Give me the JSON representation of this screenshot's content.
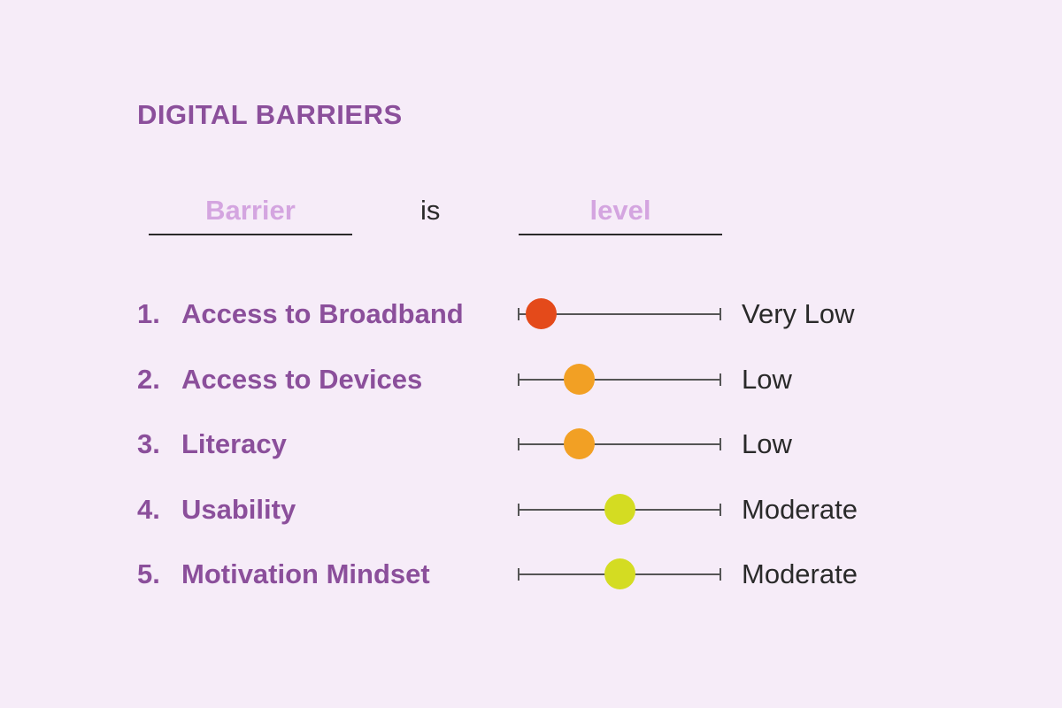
{
  "title": "DIGITAL BARRIERS",
  "sentence": {
    "blank1": "Barrier",
    "connector": "is",
    "blank2": "level"
  },
  "barriers": [
    {
      "number": "1.",
      "label": "Access to Broadband",
      "level_text": "Very Low",
      "level_fraction": 0.11,
      "color": "#e44a1a"
    },
    {
      "number": "2.",
      "label": "Access to Devices",
      "level_text": "Low",
      "level_fraction": 0.3,
      "color": "#f2a024"
    },
    {
      "number": "3.",
      "label": "Literacy",
      "level_text": "Low",
      "level_fraction": 0.3,
      "color": "#f2a024"
    },
    {
      "number": "4.",
      "label": "Usability",
      "level_text": "Moderate",
      "level_fraction": 0.5,
      "color": "#d4dc22"
    },
    {
      "number": "5.",
      "label": "Motivation Mindset",
      "level_text": "Moderate",
      "level_fraction": 0.5,
      "color": "#d4dc22"
    }
  ],
  "colors": {
    "heading": "#8b4f9b",
    "placeholder": "#d4a5e0",
    "background": "#f6ecf8"
  }
}
